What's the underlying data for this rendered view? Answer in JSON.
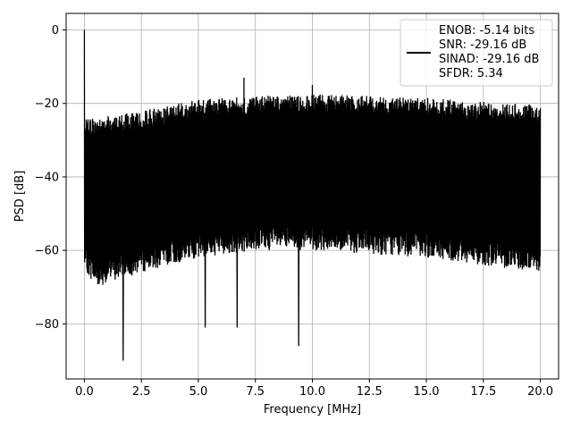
{
  "chart_data": {
    "type": "line",
    "xlabel": "Frequency [MHz]",
    "ylabel": "PSD [dB]",
    "xlim": [
      -0.8,
      20.8
    ],
    "ylim": [
      -95,
      4.5
    ],
    "xticks": [
      0.0,
      2.5,
      5.0,
      7.5,
      10.0,
      12.5,
      15.0,
      17.5,
      20.0
    ],
    "xtick_labels": [
      "0.0",
      "2.5",
      "5.0",
      "7.5",
      "10.0",
      "12.5",
      "15.0",
      "17.5",
      "20.0"
    ],
    "yticks": [
      0,
      -20,
      -40,
      -60,
      -80
    ],
    "ytick_labels": [
      "0",
      "−20",
      "−40",
      "−60",
      "−80"
    ],
    "grid": true,
    "legend_position": "upper-right",
    "legend_lines": [
      "ENOB: -5.14 bits",
      "SNR: -29.16 dB",
      "SINAD: -29.16 dB",
      "SFDR: 5.34"
    ],
    "series": [
      {
        "color": "#000000",
        "x_range": [
          0.0,
          20.0
        ],
        "upper_envelope": [
          [
            0.0,
            0.0
          ],
          [
            0.05,
            -24
          ],
          [
            0.5,
            -24
          ],
          [
            2.5,
            -22
          ],
          [
            5.0,
            -19
          ],
          [
            7.5,
            -18
          ],
          [
            10.0,
            -17.5
          ],
          [
            12.5,
            -18
          ],
          [
            15.0,
            -18.5
          ],
          [
            17.5,
            -19.5
          ],
          [
            20.0,
            -20.5
          ]
        ],
        "lower_envelope": [
          [
            0.0,
            -65
          ],
          [
            0.5,
            -70
          ],
          [
            2.5,
            -66
          ],
          [
            5.0,
            -62
          ],
          [
            7.5,
            -60
          ],
          [
            10.0,
            -60
          ],
          [
            12.5,
            -61
          ],
          [
            15.0,
            -62
          ],
          [
            17.5,
            -64
          ],
          [
            20.0,
            -66
          ]
        ],
        "notable_points": [
          [
            0.0,
            0.0
          ],
          [
            1.7,
            -90
          ],
          [
            5.3,
            -81
          ],
          [
            6.7,
            -81
          ],
          [
            7.0,
            -13
          ],
          [
            9.4,
            -86
          ],
          [
            10.0,
            -15
          ]
        ]
      }
    ]
  }
}
